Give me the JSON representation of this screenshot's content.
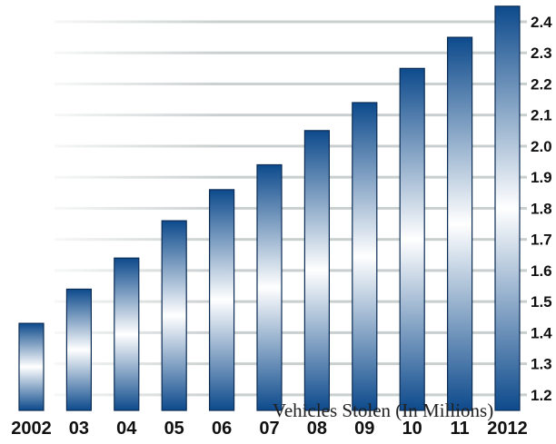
{
  "chart_data": {
    "type": "bar",
    "categories": [
      "2002",
      "03",
      "04",
      "05",
      "06",
      "07",
      "08",
      "09",
      "10",
      "11",
      "2012"
    ],
    "values": [
      1.43,
      1.54,
      1.64,
      1.76,
      1.86,
      1.94,
      2.05,
      2.14,
      2.25,
      2.35,
      2.45
    ],
    "ylim": [
      1.15,
      2.47
    ],
    "yticks": [
      "1.2",
      "1.3",
      "1.4",
      "1.5",
      "1.6",
      "1.7",
      "1.8",
      "1.9",
      "2.0",
      "2.1",
      "2.2",
      "2.3",
      "2.4"
    ],
    "y_axis_side": "right",
    "grid": true,
    "caption": "Vehicles Stolen (In Millions)",
    "colors": {
      "bar_dark": "#0d4a8c",
      "bar_light": "#ffffff",
      "grid": "#c9cfcf"
    }
  }
}
